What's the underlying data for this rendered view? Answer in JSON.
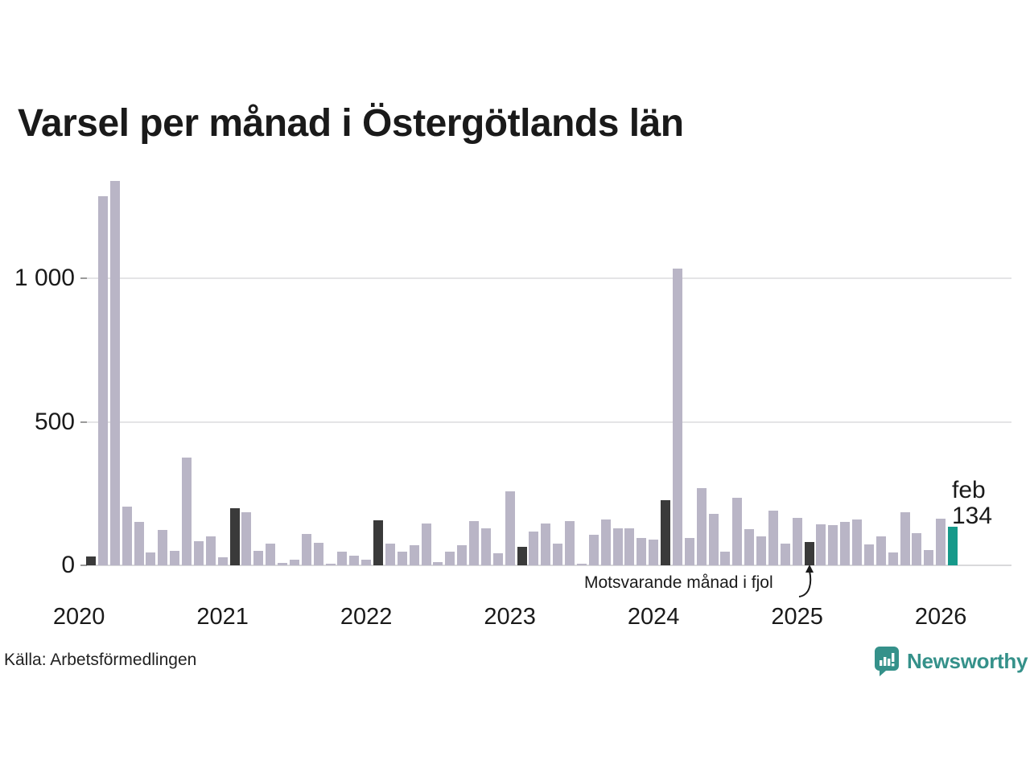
{
  "page": {
    "title": "Varsel per månad i Östergötlands län",
    "source": "Källa: Arbetsförmedlingen"
  },
  "annotation": {
    "label": "Motsvarande månad i fjol"
  },
  "latest": {
    "month_label": "feb",
    "value_label": "134"
  },
  "branding": {
    "name": "Newsworthy"
  },
  "colors": {
    "bar_default": "#b9b5c6",
    "bar_prior_year_month": "#3a3a3a",
    "bar_current": "#16998a",
    "grid": "#e4e4e6",
    "axis_text": "#1a1a1a",
    "brand_teal": "#35918a"
  },
  "chart_data": {
    "type": "bar",
    "title": "Varsel per månad i Östergötlands län",
    "xlabel": "",
    "ylabel": "",
    "frequency": "monthly",
    "x_start": "2020-02",
    "x_end": "2026-02",
    "ylim": [
      0,
      1400
    ],
    "grid": "horizontal",
    "legend_position": "none",
    "y_ticks": [
      0,
      500,
      1000
    ],
    "y_tick_labels": [
      "0",
      "500",
      "1 000"
    ],
    "x_tick_labels": [
      "2020",
      "2021",
      "2022",
      "2023",
      "2024",
      "2025",
      "2026"
    ],
    "highlight_note": "dark bars = same month (feb) in earlier years; teal bar = latest month feb 2026 = 134",
    "series": [
      {
        "name": "Varsel",
        "points": [
          [
            "2020-02",
            30,
            "dark"
          ],
          [
            "2020-03",
            1285
          ],
          [
            "2020-04",
            1340
          ],
          [
            "2020-05",
            205
          ],
          [
            "2020-06",
            150
          ],
          [
            "2020-07",
            45
          ],
          [
            "2020-08",
            122
          ],
          [
            "2020-09",
            50
          ],
          [
            "2020-10",
            375
          ],
          [
            "2020-11",
            85
          ],
          [
            "2020-12",
            100
          ],
          [
            "2021-01",
            28
          ],
          [
            "2021-02",
            200,
            "dark"
          ],
          [
            "2021-03",
            185
          ],
          [
            "2021-04",
            50
          ],
          [
            "2021-05",
            75
          ],
          [
            "2021-06",
            8
          ],
          [
            "2021-07",
            20
          ],
          [
            "2021-08",
            110
          ],
          [
            "2021-09",
            78
          ],
          [
            "2021-10",
            7
          ],
          [
            "2021-11",
            49
          ],
          [
            "2021-12",
            33
          ],
          [
            "2022-01",
            21
          ],
          [
            "2022-02",
            157,
            "dark"
          ],
          [
            "2022-03",
            77
          ],
          [
            "2022-04",
            49
          ],
          [
            "2022-05",
            70
          ],
          [
            "2022-06",
            145
          ],
          [
            "2022-07",
            10
          ],
          [
            "2022-08",
            48
          ],
          [
            "2022-09",
            70
          ],
          [
            "2022-10",
            153
          ],
          [
            "2022-11",
            129
          ],
          [
            "2022-12",
            43
          ],
          [
            "2023-01",
            257
          ],
          [
            "2023-02",
            64,
            "dark"
          ],
          [
            "2023-03",
            119
          ],
          [
            "2023-04",
            145
          ],
          [
            "2023-05",
            75
          ],
          [
            "2023-06",
            153
          ],
          [
            "2023-07",
            7
          ],
          [
            "2023-08",
            107
          ],
          [
            "2023-09",
            159
          ],
          [
            "2023-10",
            128
          ],
          [
            "2023-11",
            129
          ],
          [
            "2023-12",
            96
          ],
          [
            "2024-01",
            89
          ],
          [
            "2024-02",
            228,
            "dark"
          ],
          [
            "2024-03",
            1035
          ],
          [
            "2024-04",
            95
          ],
          [
            "2024-05",
            268
          ],
          [
            "2024-06",
            180
          ],
          [
            "2024-07",
            48
          ],
          [
            "2024-08",
            235
          ],
          [
            "2024-09",
            126
          ],
          [
            "2024-10",
            100
          ],
          [
            "2024-11",
            190
          ],
          [
            "2024-12",
            75
          ],
          [
            "2025-01",
            164
          ],
          [
            "2025-02",
            80,
            "dark"
          ],
          [
            "2025-03",
            143
          ],
          [
            "2025-04",
            140
          ],
          [
            "2025-05",
            152
          ],
          [
            "2025-06",
            160
          ],
          [
            "2025-07",
            72
          ],
          [
            "2025-08",
            101
          ],
          [
            "2025-09",
            46
          ],
          [
            "2025-10",
            186
          ],
          [
            "2025-11",
            112
          ],
          [
            "2025-12",
            54
          ],
          [
            "2026-01",
            163
          ],
          [
            "2026-02",
            134,
            "current"
          ]
        ]
      }
    ]
  }
}
